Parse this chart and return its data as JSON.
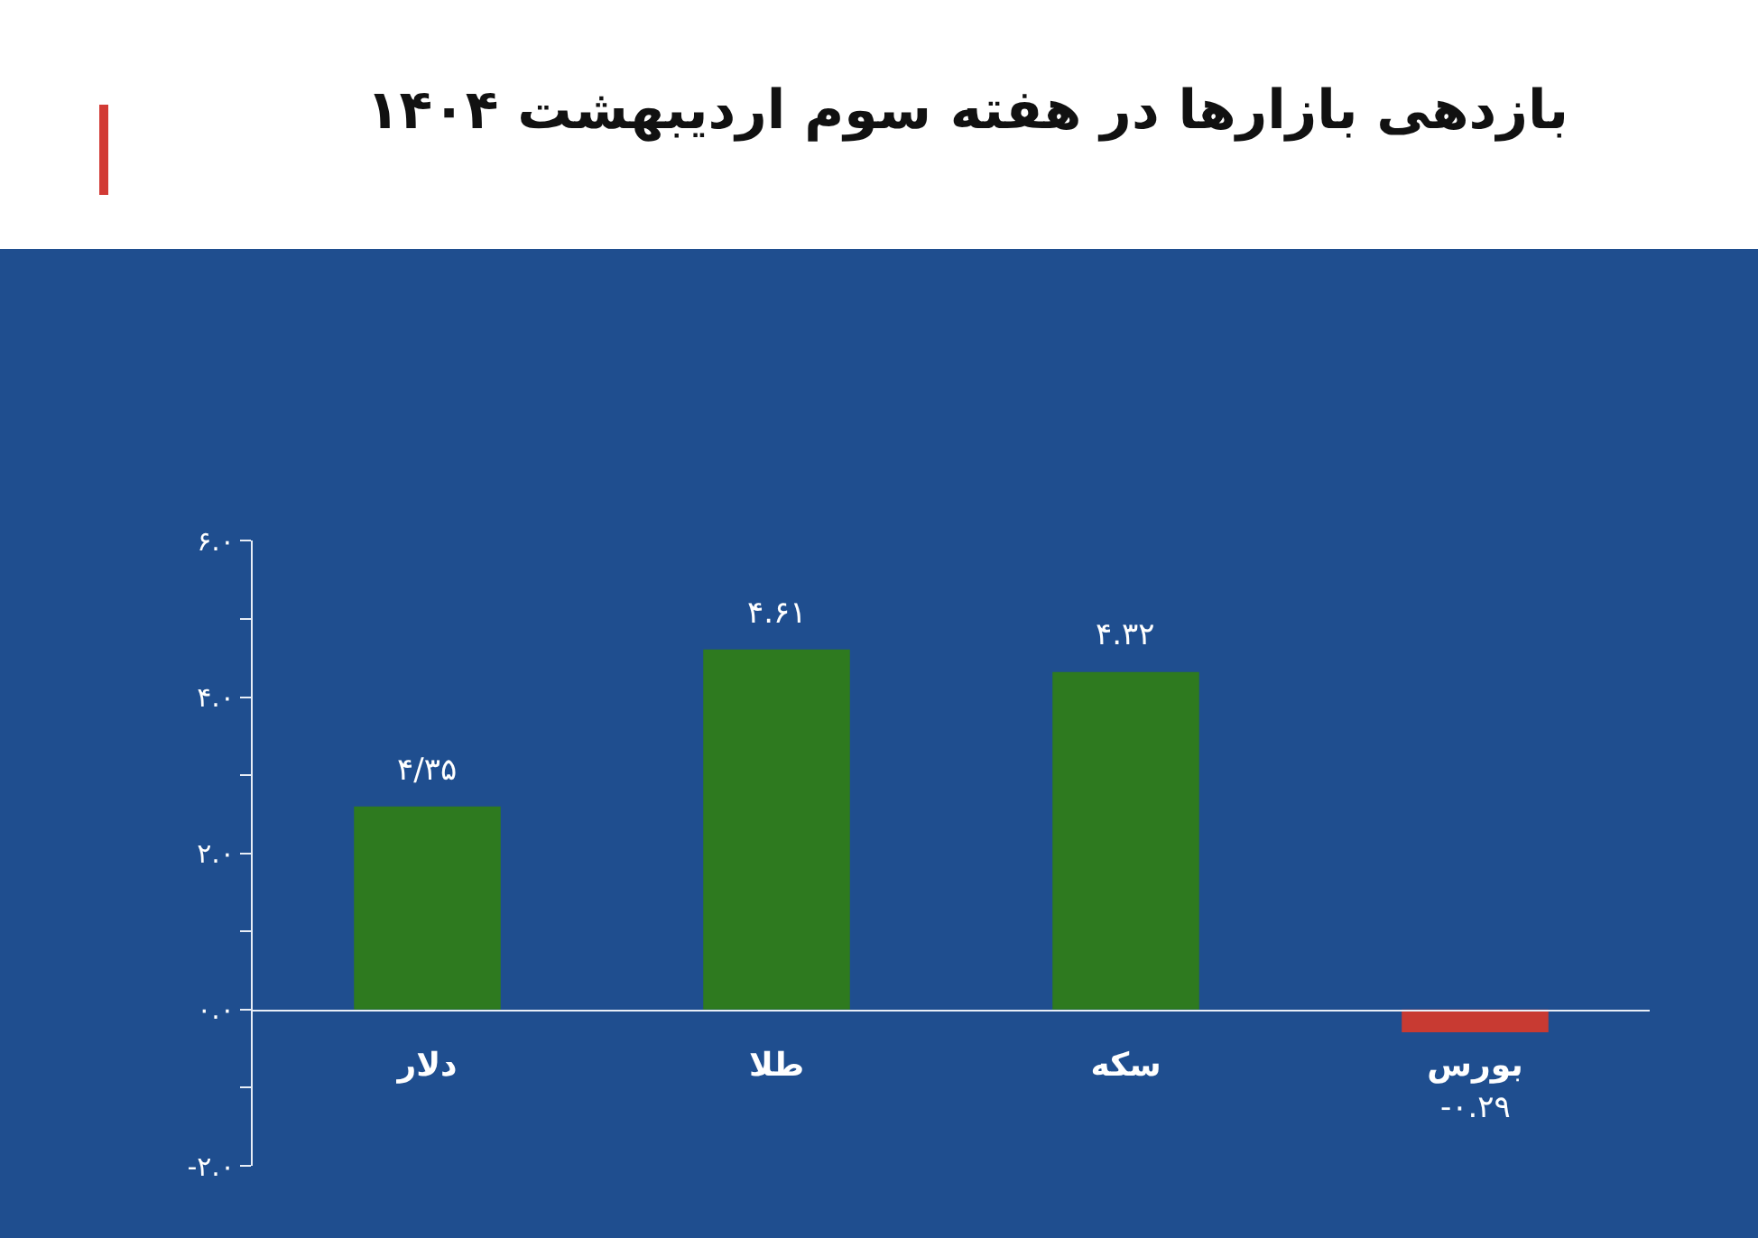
{
  "chart_data": {
    "type": "bar",
    "title": "بازدهی بازارها در هفته سوم اردیبهشت ۱۴۰۴",
    "categories": [
      "دلار",
      "طلا",
      "سکه",
      "بورس"
    ],
    "values": [
      2.6,
      4.61,
      4.32,
      -0.29
    ],
    "colors": [
      "#2e7a1f",
      "#2e7a1f",
      "#2e7a1f",
      "#c83a32"
    ],
    "value_labels": [
      "۴/۳۵",
      "۴.۶۱",
      "۴.۳۲",
      "-۰.۲۹"
    ],
    "ylim": [
      -2,
      6
    ],
    "yticks": [
      {
        "value": -2,
        "label": "-۲.۰"
      },
      {
        "value": -1,
        "label": null
      },
      {
        "value": 0,
        "label": "۰.۰"
      },
      {
        "value": 1,
        "label": null
      },
      {
        "value": 2,
        "label": "۲.۰"
      },
      {
        "value": 3,
        "label": null
      },
      {
        "value": 4,
        "label": "۴.۰"
      },
      {
        "value": 5,
        "label": null
      },
      {
        "value": 6,
        "label": "۶.۰"
      }
    ],
    "grid": false,
    "legend": false
  }
}
